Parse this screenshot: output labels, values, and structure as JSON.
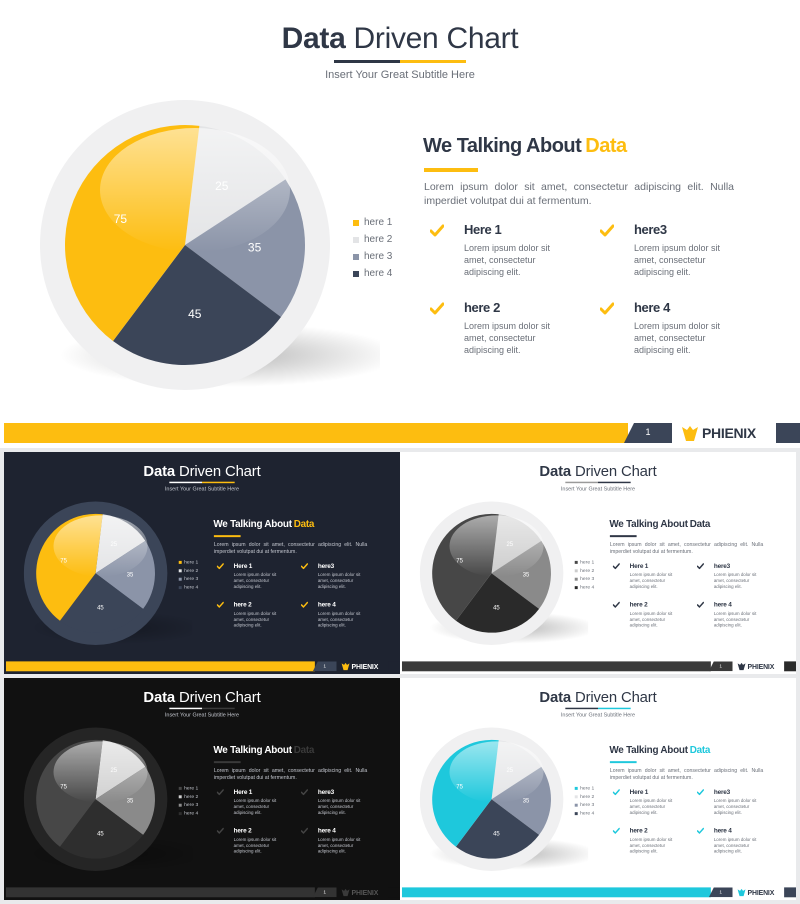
{
  "slide": {
    "title_bold": "Data",
    "title_light": "Driven Chart",
    "subtitle": "Insert  Your Great Subtitle Here",
    "heading": "We Talking About",
    "heading_accent": "Data",
    "description": "Lorem ipsum dolor sit amet, consectetur adipiscing elit. Nulla imperdiet volutpat dui at fermentum.",
    "items": [
      {
        "name": "Here 1",
        "text": "Lorem ipsum dolor sit amet, consectetur adipiscing elit."
      },
      {
        "name": "here3",
        "text": "Lorem ipsum dolor sit amet, consectetur adipiscing elit."
      },
      {
        "name": "here 2",
        "text": "Lorem ipsum dolor sit amet, consectetur adipiscing elit."
      },
      {
        "name": "here 4",
        "text": "Lorem ipsum dolor sit amet, consectetur adipiscing elit."
      }
    ],
    "page_number": "1",
    "brand": "PHIENIX"
  },
  "chart_data": {
    "type": "pie",
    "labels": [
      "here 1",
      "here 2",
      "here 3",
      "here 4"
    ],
    "values": [
      75,
      25,
      35,
      45
    ],
    "legend": "right"
  },
  "themes": [
    {
      "name": "yellow-light",
      "bg": "#ffffff",
      "title": "#2f3746",
      "text": "#6a6f78",
      "accent": "#fdbd10",
      "accent2": "#2f3746",
      "check": "#fdbd10",
      "ring": "#f0f0f1",
      "footer": "#fdbd10",
      "footer_page": "#3b4558",
      "end": "#3b4558",
      "brand": "#2f3746",
      "pie": [
        "#fdbd10",
        "#e3e4e6",
        "#8b94a8",
        "#3b4558"
      ]
    },
    {
      "name": "yellow-dark",
      "bg": "#1e2330",
      "title": "#ffffff",
      "text": "#c4c7cf",
      "accent": "#fdbd10",
      "accent2": "#ffffff",
      "check": "#fdbd10",
      "ring": "#3b4558",
      "footer": "#fdbd10",
      "footer_page": "#3b4558",
      "end": "#1e2330",
      "brand": "#ffffff",
      "pie": [
        "#fdbd10",
        "#e3e4e6",
        "#8b94a8",
        "#3b4558"
      ]
    },
    {
      "name": "gray-light",
      "bg": "#ffffff",
      "title": "#2f3746",
      "text": "#6a6f78",
      "accent": "#2f3746",
      "accent2": "#9a9a9a",
      "check": "#2f3746",
      "ring": "#f0f0f1",
      "footer": "#3a3a3a",
      "footer_page": "#3a3a3a",
      "end": "#2a2a2a",
      "brand": "#2f3746",
      "pie": [
        "#474747",
        "#cccccc",
        "#8a8a8a",
        "#2a2a2a"
      ]
    },
    {
      "name": "gray-dark",
      "bg": "#111111",
      "title": "#ffffff",
      "text": "#c4c7cf",
      "accent": "#3a3a3a",
      "accent2": "#ffffff",
      "check": "#444444",
      "ring": "#252525",
      "footer": "#333333",
      "footer_page": "#333333",
      "end": "#111111",
      "brand": "#555555",
      "pie": [
        "#474747",
        "#d0d0d0",
        "#8a8a8a",
        "#2e2e2e"
      ]
    },
    {
      "name": "cyan-light",
      "bg": "#ffffff",
      "title": "#2f3746",
      "text": "#6a6f78",
      "accent": "#1ec8dc",
      "accent2": "#2f3746",
      "check": "#1ec8dc",
      "ring": "#f0f0f1",
      "footer": "#1ec8dc",
      "footer_page": "#3b4558",
      "end": "#3b4558",
      "brand": "#2f3746",
      "pie": [
        "#1ec8dc",
        "#e3e4e6",
        "#8b94a8",
        "#3b4558"
      ]
    }
  ]
}
